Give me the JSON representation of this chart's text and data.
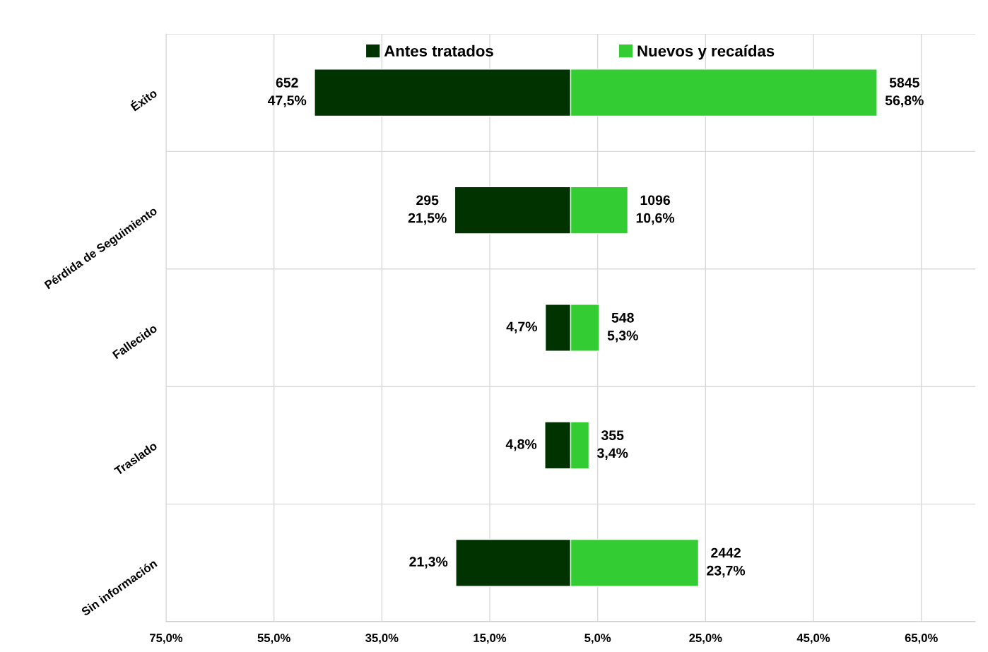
{
  "chart_data": {
    "type": "bar",
    "orientation": "horizontal",
    "categories": [
      "Éxito",
      "Pérdida de Seguimiento",
      "Fallecido",
      "Traslado",
      "Sin información"
    ],
    "series": [
      {
        "name": "Antes tratados",
        "color": "#003300",
        "base": [
          -47.5,
          -21.5,
          -4.7,
          -4.8,
          -21.3
        ],
        "values": [
          47.5,
          21.5,
          4.7,
          4.8,
          21.3
        ],
        "value_labels": [
          "652\n47,5%",
          "295\n21,5%",
          "4,7%",
          "4,8%",
          "21,3%"
        ]
      },
      {
        "name": "Nuevos y recaídas",
        "color": "#33cc33",
        "values": [
          56.8,
          10.6,
          5.3,
          3.4,
          23.7
        ],
        "value_labels": [
          "5845\n56,8%",
          "1096\n10,6%",
          "548\n5,3%",
          "355\n3,4%",
          "2442\n23,7%"
        ]
      }
    ],
    "xlim": [
      -75,
      75
    ],
    "xticks": [
      {
        "value": -75,
        "label": "75,0%"
      },
      {
        "value": -55,
        "label": "55,0%"
      },
      {
        "value": -35,
        "label": "35,0%"
      },
      {
        "value": -15,
        "label": "15,0%"
      },
      {
        "value": 5,
        "label": "5,0%"
      },
      {
        "value": 25,
        "label": "25,0%"
      },
      {
        "value": 45,
        "label": "45,0%"
      },
      {
        "value": 65,
        "label": "65,0%"
      }
    ],
    "grid": true,
    "legend": "top"
  }
}
